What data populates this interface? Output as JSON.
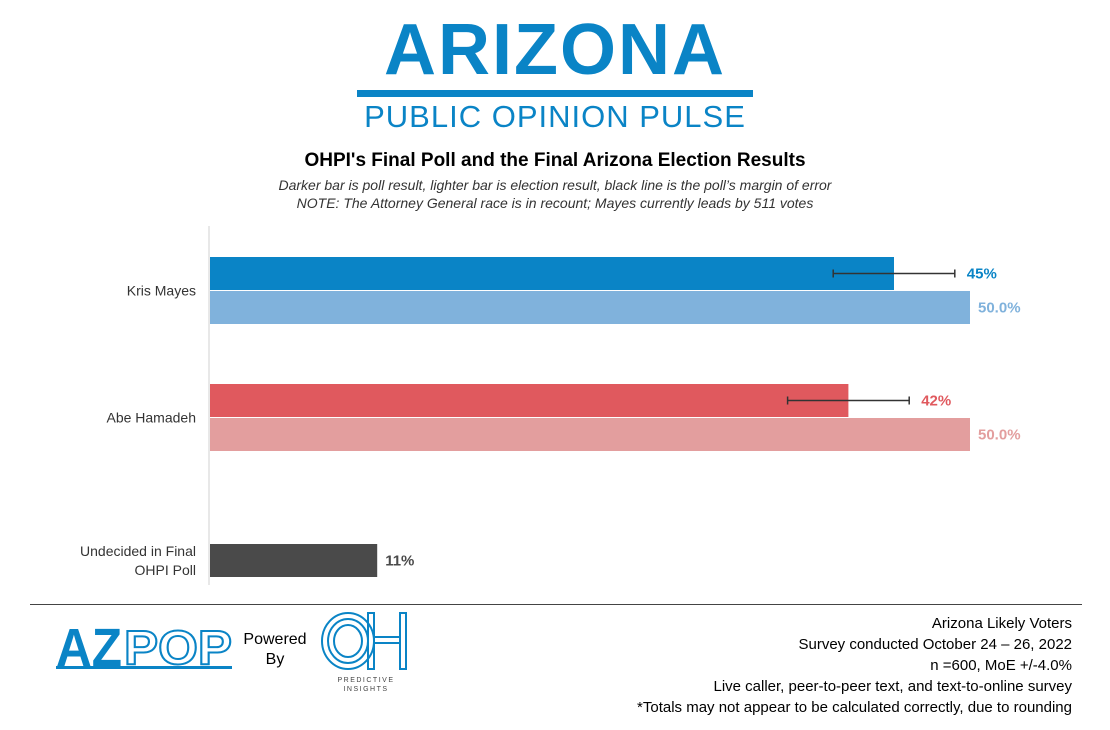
{
  "header": {
    "logo_title": "ARIZONA",
    "logo_subtitle": "PUBLIC OPINION PULSE"
  },
  "chart_data": {
    "type": "bar",
    "orientation": "horizontal",
    "title": "OHPI's Final Poll and the Final Arizona Election Results",
    "subtitle_lines": [
      "Darker bar is poll result, lighter bar is election result, black line is the poll’s margin of error",
      "NOTE: The Attorney General race is in recount; Mayes currently leads by 511 votes"
    ],
    "xlim": [
      0,
      54
    ],
    "categories": [
      {
        "label": "Kris Mayes",
        "bars": [
          {
            "kind": "poll",
            "value": 45,
            "label": "45%",
            "color": "#0a84c6",
            "error": 4
          },
          {
            "kind": "election",
            "value": 50.0,
            "label": "50.0%",
            "color": "#80b2dc"
          }
        ]
      },
      {
        "label": "Abe Hamadeh",
        "bars": [
          {
            "kind": "poll",
            "value": 42,
            "label": "42%",
            "color": "#e0595e",
            "error": 4
          },
          {
            "kind": "election",
            "value": 50.0,
            "label": "50.0%",
            "color": "#e39e9e"
          }
        ]
      },
      {
        "label": "Undecided in Final OHPI Poll",
        "bars": [
          {
            "kind": "poll",
            "value": 11,
            "label": "11%",
            "color": "#4a4a4a"
          }
        ]
      }
    ],
    "grid": false
  },
  "footer": {
    "powered_by": "Powered By",
    "azpop_text": "AZPOP",
    "oh_caption_1": "PREDICTIVE",
    "oh_caption_2": "INSIGHTS",
    "lines": [
      "Arizona Likely Voters",
      "Survey conducted October 24 – 26, 2022",
      "n =600, MoE +/-4.0%",
      "Live caller, peer-to-peer text, and text-to-online survey",
      "*Totals may not appear to be calculated correctly, due to rounding"
    ]
  }
}
